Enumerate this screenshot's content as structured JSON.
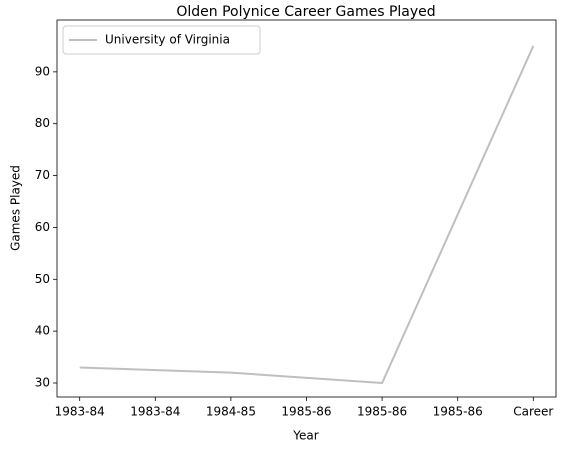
{
  "chart_data": {
    "type": "line",
    "title": "Olden Polynice Career Games Played",
    "x_label": "Year",
    "y_label": "Games Played",
    "x": [
      0,
      1,
      2,
      3
    ],
    "series": [
      {
        "name": "University of Virginia",
        "color": "#bfbfbf",
        "values": [
          33,
          32,
          30,
          95
        ]
      }
    ],
    "xlim": [
      -0.15,
      3.15
    ],
    "xticks": [
      {
        "value": 0,
        "label": "1983-84"
      },
      {
        "value": 0.5,
        "label": "1983-84"
      },
      {
        "value": 1,
        "label": "1984-85"
      },
      {
        "value": 1.5,
        "label": "1985-86"
      },
      {
        "value": 2,
        "label": "1985-86"
      },
      {
        "value": 2.5,
        "label": "1985-86"
      },
      {
        "value": 3,
        "label": "Career"
      }
    ],
    "ylim": [
      27.3,
      100
    ],
    "yticks": [
      30,
      40,
      50,
      60,
      70,
      80,
      90
    ],
    "grid": false,
    "legend": "upper left"
  }
}
